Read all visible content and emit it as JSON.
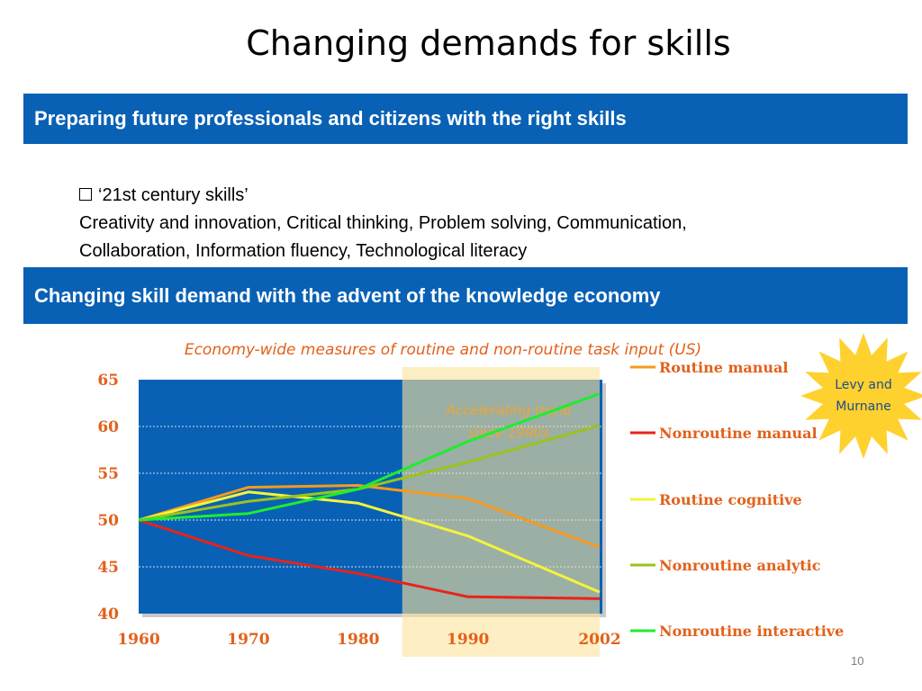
{
  "slide": {
    "title": "Changing demands for skills",
    "banner1": "Preparing future professionals and citizens with the right skills",
    "bullet_heading": "‘21st century skills’",
    "bullet_line1": "Creativity and innovation, Critical thinking, Problem solving, Communication,",
    "bullet_line2": "Collaboration, Information fluency, Technological literacy",
    "banner2": "Changing skill demand with the advent of the knowledge economy",
    "page_number": "10"
  },
  "chart_data": {
    "type": "line",
    "title": "Economy-wide measures of routine and non-routine task input (US)",
    "x": [
      "1960",
      "1970",
      "1980",
      "1990",
      "2002"
    ],
    "ylim": [
      40,
      65
    ],
    "yticks": [
      "40",
      "45",
      "50",
      "55",
      "60",
      "65"
    ],
    "grid": true,
    "legend_position": "right",
    "highlight": {
      "label_line1": "Accelerating trend",
      "label_line2": "since 1990s",
      "x_range": [
        "1985",
        "2002"
      ]
    },
    "badge": {
      "line1": "Levy and",
      "line2": "Murnane"
    },
    "series": [
      {
        "name": "Routine manual",
        "color": "#f59a1d",
        "values": [
          50,
          53.5,
          53.7,
          52.3,
          47.1
        ]
      },
      {
        "name": "Nonroutine manual",
        "color": "#e8231a",
        "values": [
          50,
          46.2,
          44.3,
          41.8,
          41.6
        ]
      },
      {
        "name": "Routine cognitive",
        "color": "#f6f33a",
        "values": [
          50,
          53.0,
          51.8,
          48.3,
          42.3
        ]
      },
      {
        "name": "Nonroutine analytic",
        "color": "#9bc31c",
        "values": [
          50,
          52.0,
          53.3,
          56.2,
          60.1
        ]
      },
      {
        "name": "Nonroutine interactive",
        "color": "#1dee2c",
        "values": [
          50,
          50.7,
          53.3,
          58.4,
          63.5
        ]
      }
    ],
    "colors": {
      "plot_bg": "#0861b5",
      "highlight_fill": "#fde39b",
      "tick_label": "#e2611b",
      "title": "#e2611b",
      "legend_text": "#e2611b",
      "badge_fill": "#fed12e",
      "badge_text": "#1f4b8c"
    }
  }
}
